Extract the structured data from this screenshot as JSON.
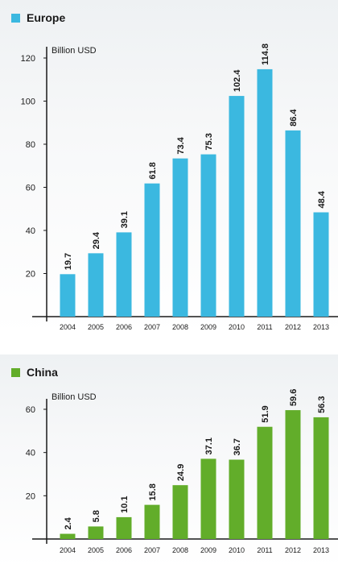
{
  "chart_data": [
    {
      "type": "bar",
      "series_label": "Europe",
      "unit_label": "Billion USD",
      "color": "#3bb8e0",
      "categories": [
        "2004",
        "2005",
        "2006",
        "2007",
        "2008",
        "2009",
        "2010",
        "2011",
        "2012",
        "2013"
      ],
      "values": [
        19.7,
        29.4,
        39.1,
        61.8,
        73.4,
        75.3,
        102.4,
        114.8,
        86.4,
        48.4
      ],
      "value_labels": [
        "19.7",
        "29.4",
        "39.1",
        "61.8",
        "73.4",
        "75.3",
        "102.4",
        "114.8",
        "86.4",
        "48.4"
      ],
      "y_ticks": [
        20,
        40,
        60,
        80,
        100,
        120
      ],
      "y_tick_labels": [
        "20",
        "40",
        "60",
        "80",
        "100",
        "120"
      ],
      "ylim": [
        0,
        120
      ],
      "grid": false
    },
    {
      "type": "bar",
      "series_label": "China",
      "unit_label": "Billion USD",
      "color": "#62ad2a",
      "categories": [
        "2004",
        "2005",
        "2006",
        "2007",
        "2008",
        "2009",
        "2010",
        "2011",
        "2012",
        "2013"
      ],
      "values": [
        2.4,
        5.8,
        10.1,
        15.8,
        24.9,
        37.1,
        36.7,
        51.9,
        59.6,
        56.3
      ],
      "value_labels": [
        "2.4",
        "5.8",
        "10.1",
        "15.8",
        "24.9",
        "37.1",
        "36.7",
        "51.9",
        "59.6",
        "56.3"
      ],
      "y_ticks": [
        20,
        40,
        60
      ],
      "y_tick_labels": [
        "20",
        "40",
        "60"
      ],
      "ylim": [
        0,
        60
      ],
      "grid": false
    }
  ]
}
